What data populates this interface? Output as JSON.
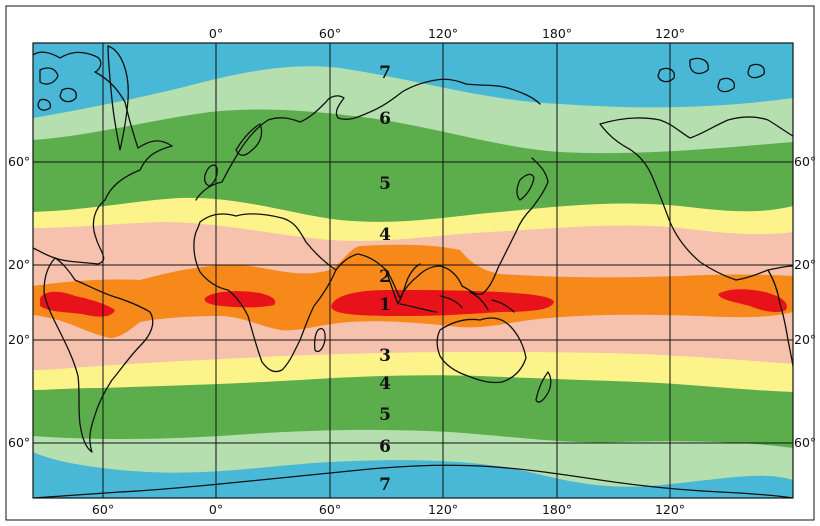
{
  "map": {
    "top_longitudes": [
      "0°",
      "60°",
      "120°",
      "180°",
      "120°"
    ],
    "bottom_longitudes": [
      "60°",
      "0°",
      "60°",
      "120°",
      "180°",
      "120°"
    ],
    "latitudes_left": [
      "60°",
      "20°",
      "20°",
      "60°"
    ],
    "latitudes_right": [
      "60°",
      "20°",
      "20°",
      "60°"
    ],
    "zone_labels_north": [
      "7",
      "6",
      "5",
      "4",
      "2",
      "1"
    ],
    "zone_labels_south": [
      "3",
      "4",
      "5",
      "6",
      "7"
    ],
    "colors": {
      "zone1": "#e8121b",
      "zone2": "#f7881a",
      "zone3": "#f6c2ad",
      "zone4": "#fcf48a",
      "zone5": "#5cae4c",
      "zone6": "#b5dfae",
      "zone7": "#48b8d6"
    }
  }
}
